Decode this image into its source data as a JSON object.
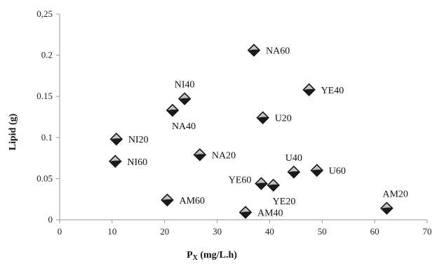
{
  "chart_data": {
    "type": "scatter",
    "xlabel": "P",
    "xlabel_sub": "X",
    "xlabel_unit": " (mg/L.h)",
    "ylabel": "Lipid  (g)",
    "xlim": [
      0,
      70
    ],
    "ylim": [
      0,
      0.25
    ],
    "grid": false,
    "legend": "none",
    "x_ticks": [
      "0",
      "10",
      "20",
      "30",
      "40",
      "50",
      "60",
      "70"
    ],
    "y_ticks": [
      "0",
      "0.05",
      "0.1",
      "0.15",
      "0.2",
      "0,25"
    ],
    "marker_color": "#1a1a1a",
    "points": [
      {
        "label": "NA60",
        "x": 37.0,
        "y": 0.206,
        "label_pos": "right"
      },
      {
        "label": "YE40",
        "x": 47.5,
        "y": 0.158,
        "label_pos": "right"
      },
      {
        "label": "NI40",
        "x": 23.8,
        "y": 0.147,
        "label_pos": "above"
      },
      {
        "label": "NA40",
        "x": 21.5,
        "y": 0.133,
        "label_pos": "below-right"
      },
      {
        "label": "U20",
        "x": 38.7,
        "y": 0.124,
        "label_pos": "right"
      },
      {
        "label": "NI20",
        "x": 10.8,
        "y": 0.098,
        "label_pos": "right"
      },
      {
        "label": "NA20",
        "x": 26.7,
        "y": 0.079,
        "label_pos": "right"
      },
      {
        "label": "NI60",
        "x": 10.6,
        "y": 0.071,
        "label_pos": "right"
      },
      {
        "label": "U40",
        "x": 44.6,
        "y": 0.058,
        "label_pos": "above"
      },
      {
        "label": "U60",
        "x": 49.0,
        "y": 0.06,
        "label_pos": "right"
      },
      {
        "label": "YE60",
        "x": 38.4,
        "y": 0.044,
        "label_pos": "left"
      },
      {
        "label": "YE20",
        "x": 40.7,
        "y": 0.042,
        "label_pos": "below-right"
      },
      {
        "label": "AM60",
        "x": 20.5,
        "y": 0.024,
        "label_pos": "right"
      },
      {
        "label": "AM20",
        "x": 62.3,
        "y": 0.014,
        "label_pos": "above-right"
      },
      {
        "label": "AM40",
        "x": 35.4,
        "y": 0.009,
        "label_pos": "right"
      }
    ]
  }
}
